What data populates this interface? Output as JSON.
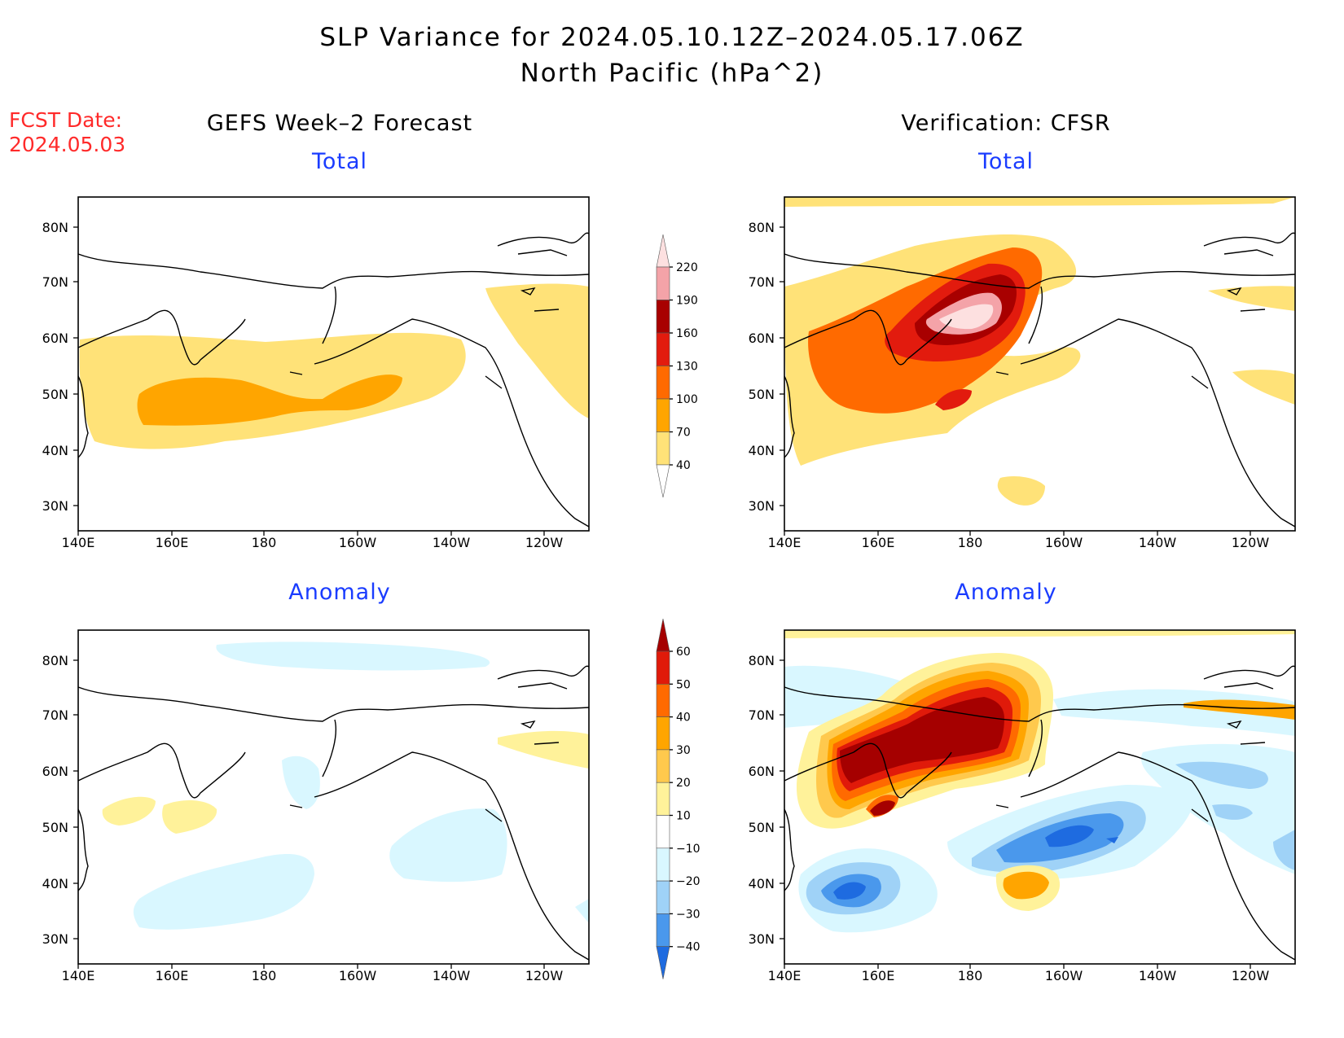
{
  "header": {
    "title_line1": "SLP Variance for 2024.05.10.12Z–2024.05.17.06Z",
    "title_line2": "North Pacific (hPa^2)",
    "fcst_label": "FCST Date:",
    "fcst_date": "2024.05.03"
  },
  "columns": {
    "left_title": "GEFS Week–2 Forecast",
    "right_title": "Verification: CFSR"
  },
  "panels": {
    "total_label": "Total",
    "anomaly_label": "Anomaly"
  },
  "axes": {
    "lat_labels": [
      "80N",
      "70N",
      "60N",
      "50N",
      "40N",
      "30N"
    ],
    "lon_labels": [
      "140E",
      "160E",
      "180",
      "160W",
      "140W",
      "120W"
    ]
  },
  "colorbars": {
    "total": {
      "labels": [
        "220",
        "190",
        "160",
        "130",
        "100",
        "70",
        "40"
      ],
      "colors": [
        "#fde0e0",
        "#f4a3a8",
        "#a80000",
        "#e21b0e",
        "#ff6a00",
        "#ffa500",
        "#ffe278"
      ]
    },
    "anomaly": {
      "labels": [
        "60",
        "50",
        "40",
        "30",
        "20",
        "10",
        "−10",
        "−20",
        "−30",
        "−40"
      ],
      "colors": [
        "#a50000",
        "#e01a0a",
        "#ff6a00",
        "#ffa500",
        "#ffc94d",
        "#fff29a",
        "#ffffff",
        "#d9f7ff",
        "#9fd2f7",
        "#4a98ec",
        "#1e6be0"
      ]
    }
  },
  "colors": {
    "title": "#000000",
    "fcst": "#ff2a2a",
    "subtitle": "#1a3cff"
  }
}
